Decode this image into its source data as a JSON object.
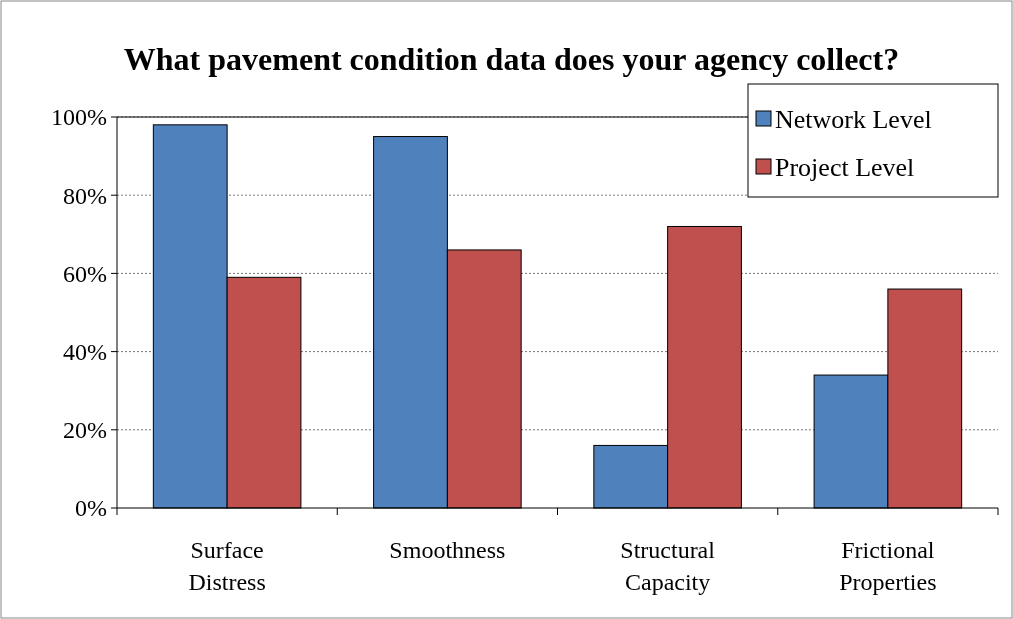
{
  "chart_data": {
    "type": "bar",
    "title": "What pavement condition data does your agency collect?",
    "categories": [
      "Surface Distress",
      "Smoothness",
      "Structural Capacity",
      "Frictional Properties"
    ],
    "series": [
      {
        "name": "Network Level",
        "color": "#4f81bd",
        "values": [
          98,
          95,
          16,
          34
        ]
      },
      {
        "name": "Project Level",
        "color": "#c0504d",
        "values": [
          59,
          66,
          72,
          56
        ]
      }
    ],
    "ylim": [
      0,
      100
    ],
    "yticks": [
      {
        "value": 0,
        "label": "0%"
      },
      {
        "value": 20,
        "label": "20%"
      },
      {
        "value": 40,
        "label": "40%"
      },
      {
        "value": 60,
        "label": "60%"
      },
      {
        "value": 80,
        "label": "80%"
      },
      {
        "value": 100,
        "label": "100%"
      }
    ],
    "grid": "y",
    "legend": "top right"
  }
}
